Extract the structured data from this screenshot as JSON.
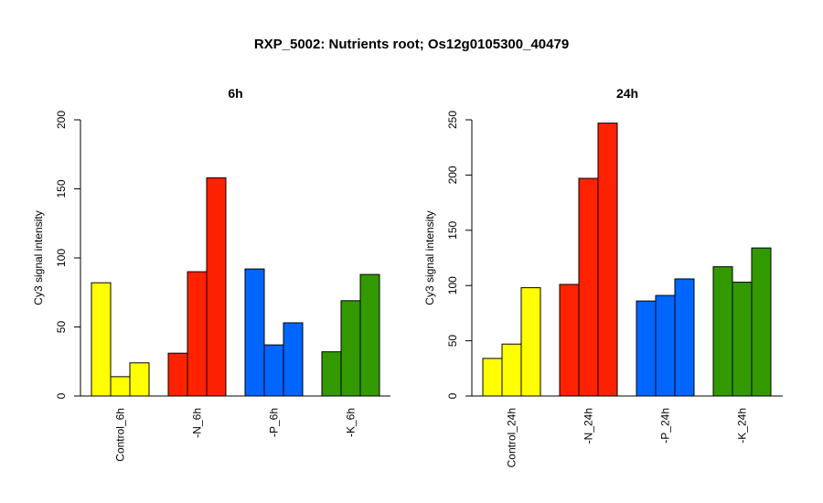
{
  "title": "RXP_5002: Nutrients root; Os12g0105300_40479",
  "chart_data": [
    {
      "type": "bar",
      "title": "6h",
      "ylabel": "Cy3 signal intensity",
      "ylim": [
        0,
        200
      ],
      "yticks": [
        0,
        50,
        100,
        150,
        200
      ],
      "groups": [
        {
          "label": "Control_6h",
          "color": "#FFFF00",
          "values": [
            82,
            14,
            24
          ]
        },
        {
          "label": "-N_6h",
          "color": "#FF2200",
          "values": [
            31,
            90,
            158
          ]
        },
        {
          "label": "-P_6h",
          "color": "#0066FF",
          "values": [
            92,
            37,
            53
          ]
        },
        {
          "label": "-K_6h",
          "color": "#339900",
          "values": [
            32,
            69,
            88
          ]
        }
      ]
    },
    {
      "type": "bar",
      "title": "24h",
      "ylabel": "Cy3 signal intensity",
      "ylim": [
        0,
        250
      ],
      "yticks": [
        0,
        50,
        100,
        150,
        200,
        250
      ],
      "groups": [
        {
          "label": "Control_24h",
          "color": "#FFFF00",
          "values": [
            34,
            47,
            98
          ]
        },
        {
          "label": "-N_24h",
          "color": "#FF2200",
          "values": [
            101,
            197,
            247
          ]
        },
        {
          "label": "-P_24h",
          "color": "#0066FF",
          "values": [
            86,
            91,
            106
          ]
        },
        {
          "label": "-K_24h",
          "color": "#339900",
          "values": [
            117,
            103,
            134
          ]
        }
      ]
    }
  ]
}
